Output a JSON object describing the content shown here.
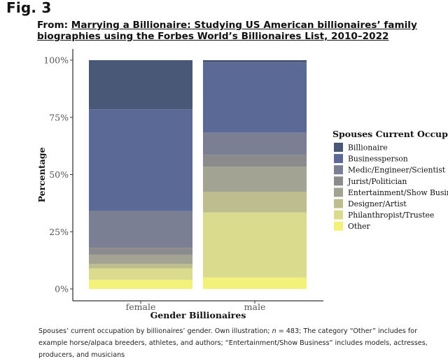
{
  "header": {
    "fig_label": "Fig. 3",
    "from_prefix": "From: ",
    "article_title": "Marrying a Billionaire: Studying US American billionaires’ family biographies using the Forbes World’s Billionaires List, 2010–2022"
  },
  "caption": {
    "part1": "Spouses’ current occupation by billionaires’ gender. Own illustration; ",
    "n_symbol": "n",
    "part2": " = 483; The category “Other” includes for example horse/alpaca breeders, athletes, and authors; “Entertainment/Show Business” includes models, actresses, producers, and musicians"
  },
  "chart_data": {
    "type": "bar",
    "stacked": true,
    "title": "",
    "xlabel": "Gender Billionaires",
    "ylabel": "Percentage",
    "ylim": [
      0,
      100
    ],
    "yticks": [
      0,
      25,
      50,
      75,
      100
    ],
    "ytick_labels": [
      "0%",
      "25%",
      "50%",
      "75%",
      "100%"
    ],
    "categories": [
      "female",
      "male"
    ],
    "legend_title": "Spouses Current Occupation",
    "series": [
      {
        "name": "Billionaire",
        "color": "#4a5878",
        "values": [
          21.5,
          1.0
        ]
      },
      {
        "name": "Businessperson",
        "color": "#5b6996",
        "values": [
          44.5,
          30.5
        ]
      },
      {
        "name": "Medic/Engineer/Scientist",
        "color": "#7b7f93",
        "values": [
          16.0,
          10.0
        ]
      },
      {
        "name": "Jurist/Politician",
        "color": "#8b8b8e",
        "values": [
          3.0,
          5.0
        ]
      },
      {
        "name": "Entertainment/Show Business",
        "color": "#a3a393",
        "values": [
          4.0,
          11.0
        ]
      },
      {
        "name": "Designer/Artist",
        "color": "#bdbd8f",
        "values": [
          2.0,
          9.0
        ]
      },
      {
        "name": "Philanthropist/Trustee",
        "color": "#dbdb8d",
        "values": [
          5.0,
          28.5
        ]
      },
      {
        "name": "Other",
        "color": "#f2f27a",
        "values": [
          4.0,
          5.0
        ]
      }
    ]
  }
}
